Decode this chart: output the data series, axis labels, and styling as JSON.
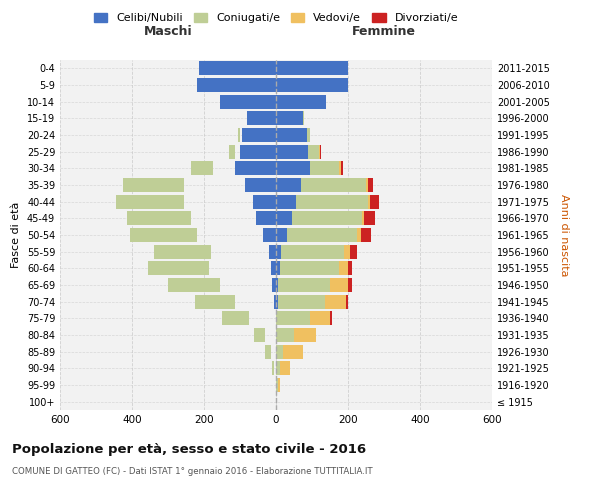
{
  "age_groups": [
    "100+",
    "95-99",
    "90-94",
    "85-89",
    "80-84",
    "75-79",
    "70-74",
    "65-69",
    "60-64",
    "55-59",
    "50-54",
    "45-49",
    "40-44",
    "35-39",
    "30-34",
    "25-29",
    "20-24",
    "15-19",
    "10-14",
    "5-9",
    "0-4"
  ],
  "birth_years": [
    "≤ 1915",
    "1916-1920",
    "1921-1925",
    "1926-1930",
    "1931-1935",
    "1936-1940",
    "1941-1945",
    "1946-1950",
    "1951-1955",
    "1956-1960",
    "1961-1965",
    "1966-1970",
    "1971-1975",
    "1976-1980",
    "1981-1985",
    "1986-1990",
    "1991-1995",
    "1996-2000",
    "2001-2005",
    "2006-2010",
    "2011-2015"
  ],
  "male": {
    "celibi": [
      0,
      0,
      0,
      0,
      0,
      0,
      5,
      10,
      15,
      20,
      35,
      55,
      65,
      85,
      115,
      100,
      95,
      80,
      155,
      220,
      215
    ],
    "coniugati": [
      0,
      0,
      5,
      15,
      30,
      75,
      110,
      145,
      170,
      160,
      185,
      180,
      190,
      170,
      60,
      15,
      5,
      2,
      0,
      0,
      0
    ],
    "vedovi": [
      0,
      0,
      0,
      5,
      10,
      10,
      5,
      5,
      5,
      5,
      5,
      5,
      5,
      5,
      5,
      2,
      0,
      0,
      0,
      0,
      0
    ],
    "divorziati": [
      0,
      0,
      0,
      0,
      0,
      5,
      5,
      10,
      10,
      15,
      30,
      25,
      20,
      10,
      5,
      0,
      0,
      0,
      0,
      0,
      0
    ]
  },
  "female": {
    "nubili": [
      0,
      0,
      0,
      0,
      0,
      0,
      5,
      5,
      10,
      15,
      30,
      45,
      55,
      70,
      95,
      90,
      85,
      75,
      140,
      200,
      200
    ],
    "coniugate": [
      0,
      5,
      10,
      20,
      50,
      95,
      130,
      145,
      165,
      175,
      195,
      195,
      200,
      180,
      80,
      30,
      10,
      3,
      0,
      0,
      0
    ],
    "vedove": [
      0,
      5,
      30,
      55,
      60,
      55,
      60,
      50,
      25,
      15,
      10,
      5,
      5,
      5,
      5,
      2,
      0,
      0,
      0,
      0,
      0
    ],
    "divorziate": [
      0,
      0,
      0,
      0,
      0,
      5,
      5,
      10,
      10,
      20,
      30,
      30,
      25,
      15,
      5,
      2,
      0,
      0,
      0,
      0,
      0
    ]
  },
  "colors": {
    "celibi": "#4472C4",
    "coniugati": "#BFCE96",
    "vedovi": "#F0C060",
    "divorziati": "#CC2222"
  },
  "xlim": [
    -600,
    600
  ],
  "xticks": [
    -600,
    -400,
    -200,
    0,
    200,
    400,
    600
  ],
  "xtick_labels": [
    "600",
    "400",
    "200",
    "0",
    "200",
    "400",
    "600"
  ],
  "title": "Popolazione per età, sesso e stato civile - 2016",
  "subtitle": "COMUNE DI GATTEO (FC) - Dati ISTAT 1° gennaio 2016 - Elaborazione TUTTITALIA.IT",
  "ylabel_left": "Fasce di età",
  "ylabel_right": "Anni di nascita",
  "legend_labels": [
    "Celibi/Nubili",
    "Coniugati/e",
    "Vedovi/e",
    "Divorziati/e"
  ],
  "maschi_label": "Maschi",
  "femmine_label": "Femmine",
  "background_color": "#FFFFFF",
  "grid_color": "#CCCCCC"
}
